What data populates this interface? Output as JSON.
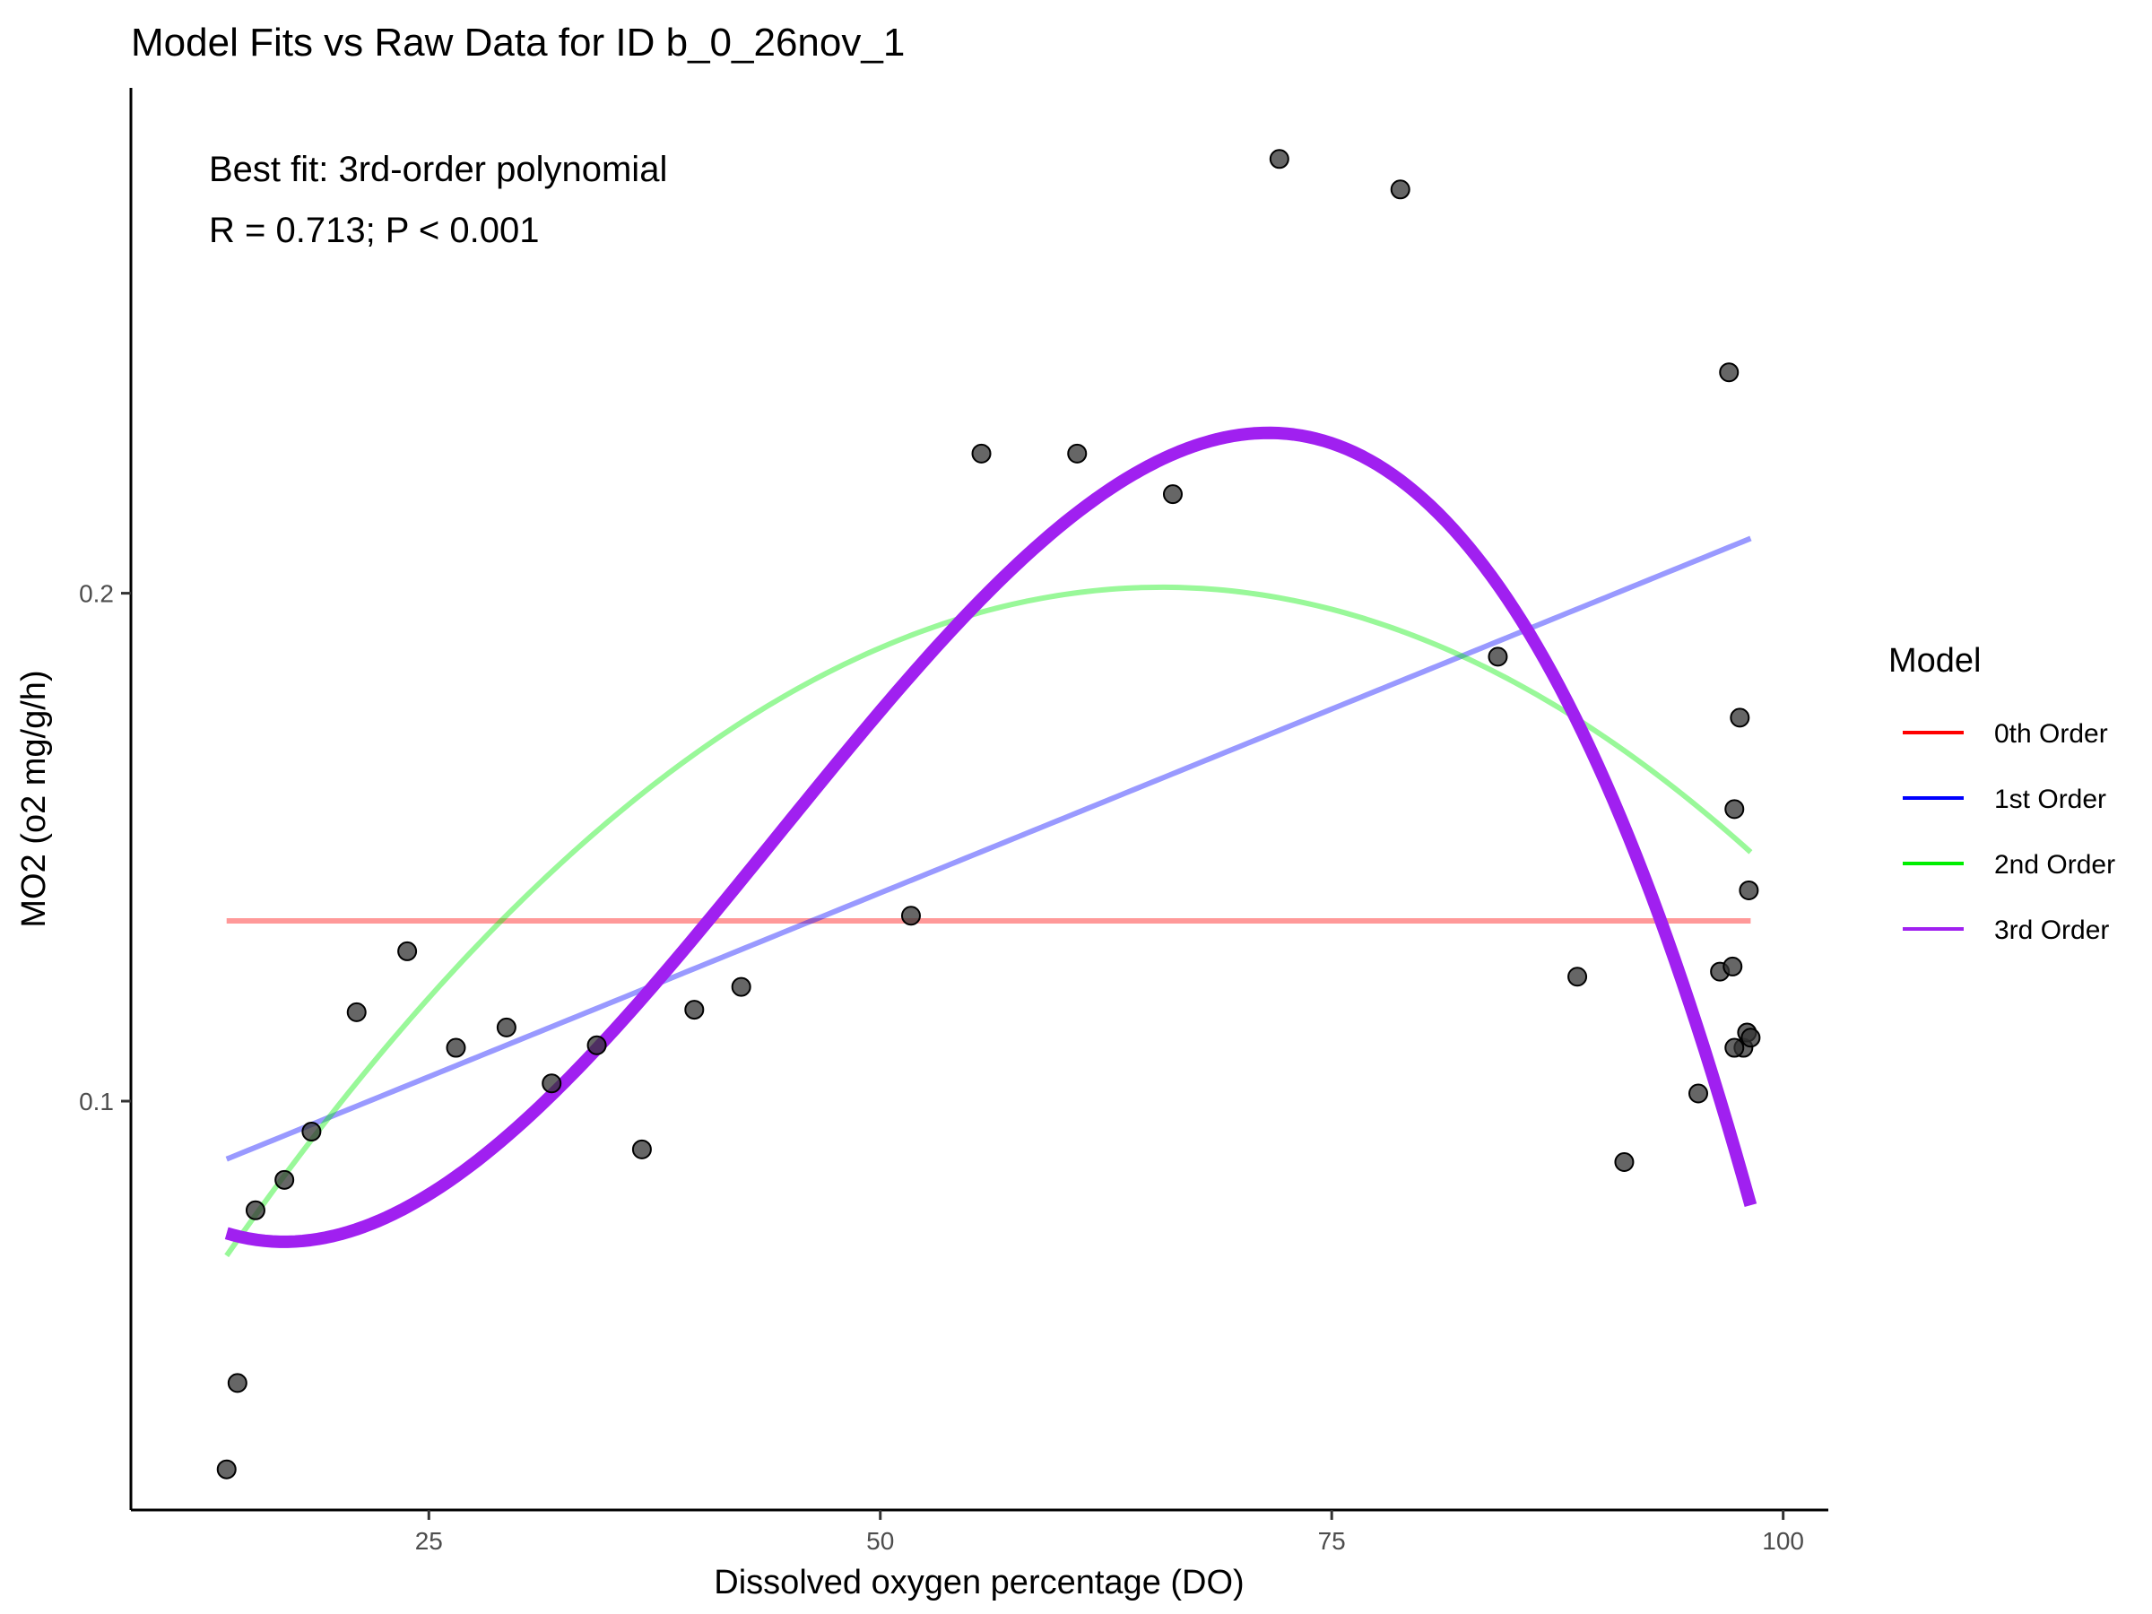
{
  "chart_data": {
    "type": "scatter",
    "title": "Model Fits vs Raw Data for ID b_0_26nov_1",
    "xlabel": "Dissolved oxygen percentage (DO)",
    "ylabel": "MO2 (o2 mg/g/h)",
    "xlim": [
      8.5,
      102.5
    ],
    "ylim": [
      0.0195,
      0.2995
    ],
    "x_ticks": [
      25,
      50,
      75,
      100
    ],
    "y_ticks": [
      0.1,
      0.2
    ],
    "x_tick_labels": [
      "25",
      "50",
      "75",
      "100"
    ],
    "y_tick_labels": [
      "0.1",
      "0.2"
    ],
    "grid": false,
    "legend_position": "right",
    "legend": {
      "title": "Model",
      "entries": [
        {
          "label": "0th Order",
          "color": "#ff0000"
        },
        {
          "label": "1st Order",
          "color": "#0000ff"
        },
        {
          "label": "2nd Order",
          "color": "#00ee00"
        },
        {
          "label": "3rd Order",
          "color": "#a020f0"
        }
      ]
    },
    "annotation": {
      "line1": "Best fit: 3rd-order polynomial",
      "line2": "R = 0.713; P < 0.001"
    },
    "points": {
      "color": "#333333",
      "x": [
        13.8,
        14.4,
        15.4,
        17.0,
        18.5,
        21.0,
        23.8,
        26.5,
        29.3,
        31.8,
        34.3,
        36.8,
        39.7,
        42.3,
        51.7,
        55.6,
        60.9,
        66.2,
        72.1,
        78.8,
        84.2,
        88.6,
        91.2,
        95.3,
        96.5,
        97.0,
        97.2,
        97.3,
        97.6,
        97.8,
        98.0,
        98.1,
        98.2,
        97.3
      ],
      "y": [
        0.0275,
        0.0445,
        0.0785,
        0.0845,
        0.094,
        0.1175,
        0.1295,
        0.1105,
        0.1145,
        0.1035,
        0.111,
        0.0905,
        0.118,
        0.1225,
        0.1365,
        0.2275,
        0.2275,
        0.2195,
        0.2855,
        0.2795,
        0.1875,
        0.1245,
        0.088,
        0.1015,
        0.1255,
        0.2435,
        0.1265,
        0.1575,
        0.1755,
        0.1105,
        0.1135,
        0.1415,
        0.1125,
        0.1105
      ]
    },
    "series": [
      {
        "name": "0th Order",
        "color": "#ff0000",
        "opacity": 0.4,
        "width": "thin",
        "type": "polynomial",
        "coefficients": [
          0.1355
        ],
        "x_range": [
          13.8,
          98.2
        ]
      },
      {
        "name": "1st Order",
        "color": "#0000ff",
        "opacity": 0.4,
        "width": "thin",
        "type": "polynomial",
        "coefficients": [
          0.0686,
          0.001448
        ],
        "x_range": [
          13.8,
          98.2
        ]
      },
      {
        "name": "2nd Order",
        "color": "#00ee00",
        "opacity": 0.4,
        "width": "thin",
        "type": "polynomial",
        "coefficients": [
          -0.0099,
          0.006436,
          -4.906e-05
        ],
        "x_range": [
          13.8,
          98.2
        ]
      },
      {
        "name": "3rd Order",
        "color": "#a020f0",
        "opacity": 1.0,
        "width": "thick",
        "type": "cubic_points",
        "points": [
          [
            13.8,
            0.074
          ],
          [
            40.0,
            0.1335
          ],
          [
            70.8,
            0.2315
          ],
          [
            98.2,
            0.0795
          ]
        ],
        "x_range": [
          13.8,
          98.2
        ]
      }
    ]
  }
}
